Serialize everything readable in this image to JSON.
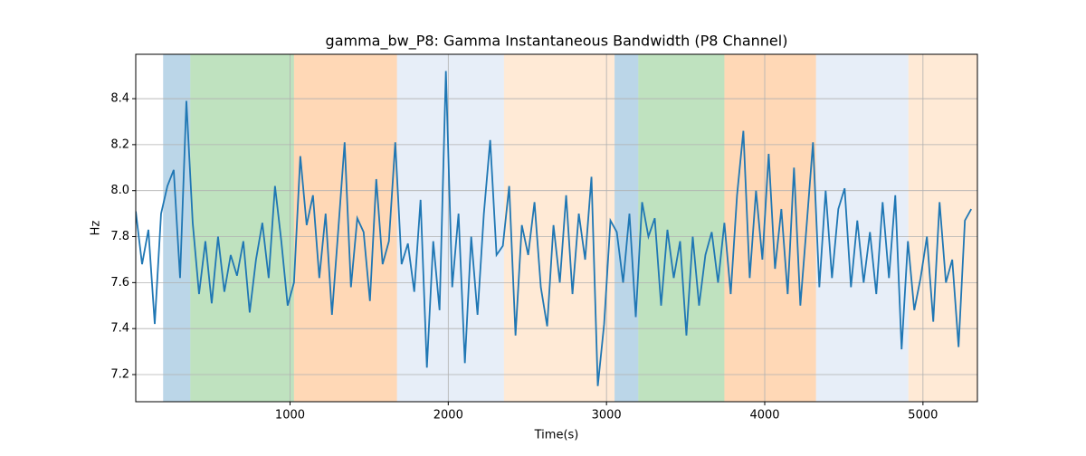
{
  "chart_data": {
    "type": "line",
    "title": "gamma_bw_P8: Gamma Instantaneous Bandwidth (P8 Channel)",
    "xlabel": "Time(s)",
    "ylabel": "Hz",
    "xlim": [
      25,
      5344
    ],
    "ylim": [
      7.082,
      8.593
    ],
    "xticks": [
      1000,
      2000,
      3000,
      4000,
      5000
    ],
    "yticks": [
      7.2,
      7.4,
      7.6,
      7.8,
      {
        "value": 8,
        "label": "8.0"
      },
      8.2,
      8.4
    ],
    "grid": true,
    "regions": [
      {
        "start": 198,
        "end": 370,
        "color": "#1f77b4"
      },
      {
        "start": 370,
        "end": 1025,
        "color": "#2ca02c"
      },
      {
        "start": 1025,
        "end": 1676,
        "color": "#ff7f0e"
      },
      {
        "start": 1676,
        "end": 2352,
        "color": "#aec7e8"
      },
      {
        "start": 2352,
        "end": 3051,
        "color": "#ffbb78"
      },
      {
        "start": 3051,
        "end": 3201,
        "color": "#1f77b4"
      },
      {
        "start": 3201,
        "end": 3745,
        "color": "#2ca02c"
      },
      {
        "start": 3745,
        "end": 4324,
        "color": "#ff7f0e"
      },
      {
        "start": 4324,
        "end": 4908,
        "color": "#aec7e8"
      },
      {
        "start": 4908,
        "end": 5344,
        "color": "#ffbb78"
      }
    ],
    "x": [
      25,
      65,
      105,
      145,
      185,
      225,
      265,
      305,
      345,
      385,
      425,
      465,
      505,
      545,
      585,
      625,
      665,
      705,
      745,
      785,
      825,
      865,
      905,
      945,
      985,
      1025,
      1065,
      1105,
      1145,
      1185,
      1225,
      1265,
      1305,
      1345,
      1385,
      1425,
      1465,
      1505,
      1545,
      1585,
      1625,
      1665,
      1705,
      1745,
      1785,
      1825,
      1865,
      1905,
      1945,
      1985,
      2025,
      2065,
      2105,
      2145,
      2185,
      2225,
      2265,
      2305,
      2345,
      2385,
      2425,
      2465,
      2505,
      2545,
      2585,
      2625,
      2665,
      2705,
      2745,
      2785,
      2825,
      2865,
      2905,
      2945,
      2985,
      3025,
      3065,
      3105,
      3145,
      3185,
      3225,
      3265,
      3305,
      3345,
      3385,
      3425,
      3465,
      3505,
      3545,
      3585,
      3625,
      3665,
      3705,
      3745,
      3785,
      3825,
      3865,
      3905,
      3945,
      3985,
      4025,
      4065,
      4105,
      4145,
      4185,
      4225,
      4265,
      4305,
      4345,
      4385,
      4425,
      4465,
      4505,
      4545,
      4585,
      4625,
      4665,
      4705,
      4745,
      4785,
      4825,
      4865,
      4905,
      4945,
      4985,
      5025,
      5065,
      5105,
      5145,
      5185,
      5225,
      5265,
      5305
    ],
    "series": [
      {
        "name": "gamma_bw_P8",
        "color": "#1f77b4",
        "values": [
          7.91,
          7.68,
          7.83,
          7.42,
          7.9,
          8.02,
          8.09,
          7.62,
          8.39,
          7.86,
          7.55,
          7.78,
          7.51,
          7.8,
          7.56,
          7.72,
          7.63,
          7.78,
          7.47,
          7.7,
          7.86,
          7.62,
          8.02,
          7.78,
          7.5,
          7.6,
          8.15,
          7.85,
          7.98,
          7.62,
          7.9,
          7.46,
          7.83,
          8.21,
          7.58,
          7.88,
          7.82,
          7.52,
          8.05,
          7.68,
          7.78,
          8.21,
          7.68,
          7.77,
          7.56,
          7.96,
          7.23,
          7.78,
          7.48,
          8.52,
          7.58,
          7.9,
          7.25,
          7.8,
          7.46,
          7.9,
          8.22,
          7.72,
          7.76,
          8.02,
          7.37,
          7.85,
          7.72,
          7.95,
          7.58,
          7.41,
          7.85,
          7.6,
          7.98,
          7.55,
          7.9,
          7.7,
          8.06,
          7.15,
          7.42,
          7.87,
          7.82,
          7.6,
          7.9,
          7.45,
          7.95,
          7.8,
          7.88,
          7.5,
          7.83,
          7.62,
          7.78,
          7.37,
          7.8,
          7.5,
          7.72,
          7.82,
          7.6,
          7.86,
          7.55,
          7.98,
          8.26,
          7.62,
          8.0,
          7.7,
          8.16,
          7.66,
          7.92,
          7.55,
          8.1,
          7.5,
          7.85,
          8.21,
          7.58,
          8.0,
          7.62,
          7.92,
          8.01,
          7.58,
          7.87,
          7.6,
          7.82,
          7.55,
          7.95,
          7.62,
          7.98,
          7.31,
          7.78,
          7.48,
          7.62,
          7.8,
          7.43,
          7.95,
          7.6,
          7.7,
          7.32,
          7.87,
          7.92
        ]
      }
    ]
  }
}
